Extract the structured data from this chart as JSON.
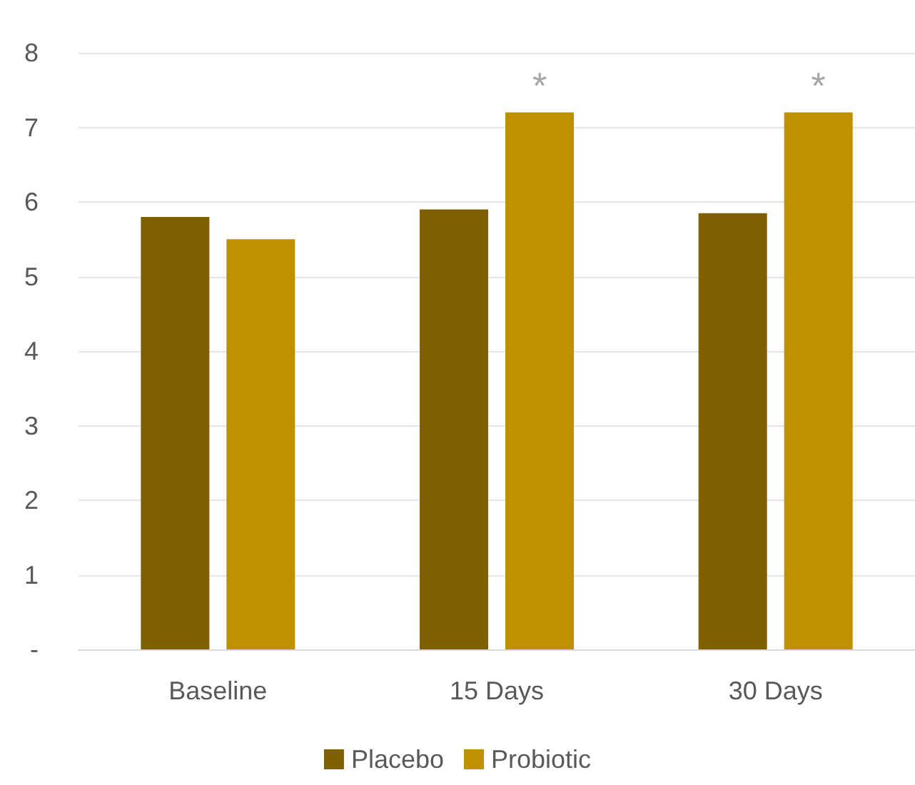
{
  "chart_data": {
    "type": "bar",
    "categories": [
      "Baseline",
      "15 Days",
      "30 Days"
    ],
    "series": [
      {
        "name": "Placebo",
        "color": "#7f6000",
        "values": [
          5.8,
          5.9,
          5.85
        ]
      },
      {
        "name": "Probiotic",
        "color": "#bf9000",
        "values": [
          5.5,
          7.2,
          7.2
        ],
        "value_labels": [
          null,
          "*",
          "*"
        ]
      }
    ],
    "ylim": [
      0,
      8
    ],
    "yticks": [
      {
        "value": 0,
        "label": "-"
      },
      1,
      2,
      3,
      4,
      5,
      6,
      7,
      8
    ],
    "grid": "y",
    "legend": "bottom"
  }
}
